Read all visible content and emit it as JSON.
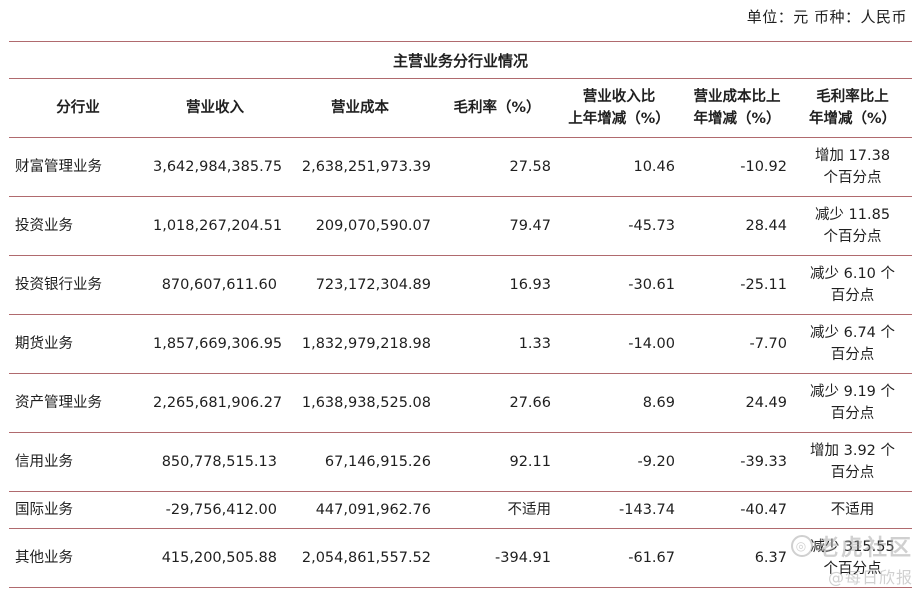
{
  "unit_line": "单位：元  币种：人民币",
  "table": {
    "title": "主营业务分行业情况",
    "headers": [
      {
        "line1": "分行业",
        "line2": ""
      },
      {
        "line1": "营业收入",
        "line2": ""
      },
      {
        "line1": "营业成本",
        "line2": ""
      },
      {
        "line1": "毛利率（%）",
        "line2": ""
      },
      {
        "line1": "营业收入比",
        "line2": "上年增减（%）"
      },
      {
        "line1": "营业成本比上",
        "line2": "年增减（%）"
      },
      {
        "line1": "毛利率比上",
        "line2": "年增减（%）"
      }
    ],
    "rows": [
      {
        "segment": "财富管理业务",
        "revenue": "3,642,984,385.75",
        "cost": "2,638,251,973.39",
        "margin": "27.58",
        "rev_chg": "10.46",
        "cost_chg": "-10.92",
        "margin_chg_1": "增加 17.38",
        "margin_chg_2": "个百分点"
      },
      {
        "segment": "投资业务",
        "revenue": "1,018,267,204.51",
        "cost": "209,070,590.07",
        "margin": "79.47",
        "rev_chg": "-45.73",
        "cost_chg": "28.44",
        "margin_chg_1": "减少 11.85",
        "margin_chg_2": "个百分点"
      },
      {
        "segment": "投资银行业务",
        "revenue": "870,607,611.60",
        "cost": "723,172,304.89",
        "margin": "16.93",
        "rev_chg": "-30.61",
        "cost_chg": "-25.11",
        "margin_chg_1": "减少 6.10 个",
        "margin_chg_2": "百分点"
      },
      {
        "segment": "期货业务",
        "revenue": "1,857,669,306.95",
        "cost": "1,832,979,218.98",
        "margin": "1.33",
        "rev_chg": "-14.00",
        "cost_chg": "-7.70",
        "margin_chg_1": "减少 6.74 个",
        "margin_chg_2": "百分点"
      },
      {
        "segment": "资产管理业务",
        "revenue": "2,265,681,906.27",
        "cost": "1,638,938,525.08",
        "margin": "27.66",
        "rev_chg": "8.69",
        "cost_chg": "24.49",
        "margin_chg_1": "减少 9.19 个",
        "margin_chg_2": "百分点"
      },
      {
        "segment": "信用业务",
        "revenue": "850,778,515.13",
        "cost": "67,146,915.26",
        "margin": "92.11",
        "rev_chg": "-9.20",
        "cost_chg": "-39.33",
        "margin_chg_1": "增加 3.92 个",
        "margin_chg_2": "百分点"
      },
      {
        "segment": "国际业务",
        "revenue": "-29,756,412.00",
        "cost": "447,091,962.76",
        "margin": "不适用",
        "rev_chg": "-143.74",
        "cost_chg": "-40.47",
        "margin_chg_1": "不适用",
        "margin_chg_2": ""
      },
      {
        "segment": "其他业务",
        "revenue": "415,200,505.88",
        "cost": "2,054,861,557.52",
        "margin": "-394.91",
        "rev_chg": "-61.67",
        "cost_chg": "6.37",
        "margin_chg_1": "减少 315.55",
        "margin_chg_2": "个百分点"
      }
    ]
  },
  "watermark": {
    "line1": "老虎社区",
    "line2": "@每日欣报"
  }
}
